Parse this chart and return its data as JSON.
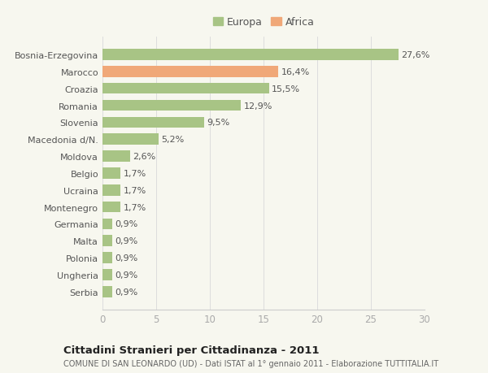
{
  "categories": [
    "Serbia",
    "Ungheria",
    "Polonia",
    "Malta",
    "Germania",
    "Montenegro",
    "Ucraina",
    "Belgio",
    "Moldova",
    "Macedonia d/N.",
    "Slovenia",
    "Romania",
    "Croazia",
    "Marocco",
    "Bosnia-Erzegovina"
  ],
  "values": [
    0.9,
    0.9,
    0.9,
    0.9,
    0.9,
    1.7,
    1.7,
    1.7,
    2.6,
    5.2,
    9.5,
    12.9,
    15.5,
    16.4,
    27.6
  ],
  "labels": [
    "0,9%",
    "0,9%",
    "0,9%",
    "0,9%",
    "0,9%",
    "1,7%",
    "1,7%",
    "1,7%",
    "2,6%",
    "5,2%",
    "9,5%",
    "12,9%",
    "15,5%",
    "16,4%",
    "27,6%"
  ],
  "colors": [
    "#a8c485",
    "#a8c485",
    "#a8c485",
    "#a8c485",
    "#a8c485",
    "#a8c485",
    "#a8c485",
    "#a8c485",
    "#a8c485",
    "#a8c485",
    "#a8c485",
    "#a8c485",
    "#a8c485",
    "#f0a878",
    "#a8c485"
  ],
  "europa_color": "#a8c485",
  "africa_color": "#f0a878",
  "legend_europa": "Europa",
  "legend_africa": "Africa",
  "xlim": [
    0,
    30
  ],
  "xticks": [
    0,
    5,
    10,
    15,
    20,
    25,
    30
  ],
  "title": "Cittadini Stranieri per Cittadinanza - 2011",
  "subtitle": "COMUNE DI SAN LEONARDO (UD) - Dati ISTAT al 1° gennaio 2011 - Elaborazione TUTTITALIA.IT",
  "background_color": "#f7f7ef",
  "bar_height": 0.65,
  "label_fontsize": 8,
  "ytick_fontsize": 8,
  "xtick_fontsize": 8.5,
  "title_fontsize": 9.5,
  "subtitle_fontsize": 7
}
